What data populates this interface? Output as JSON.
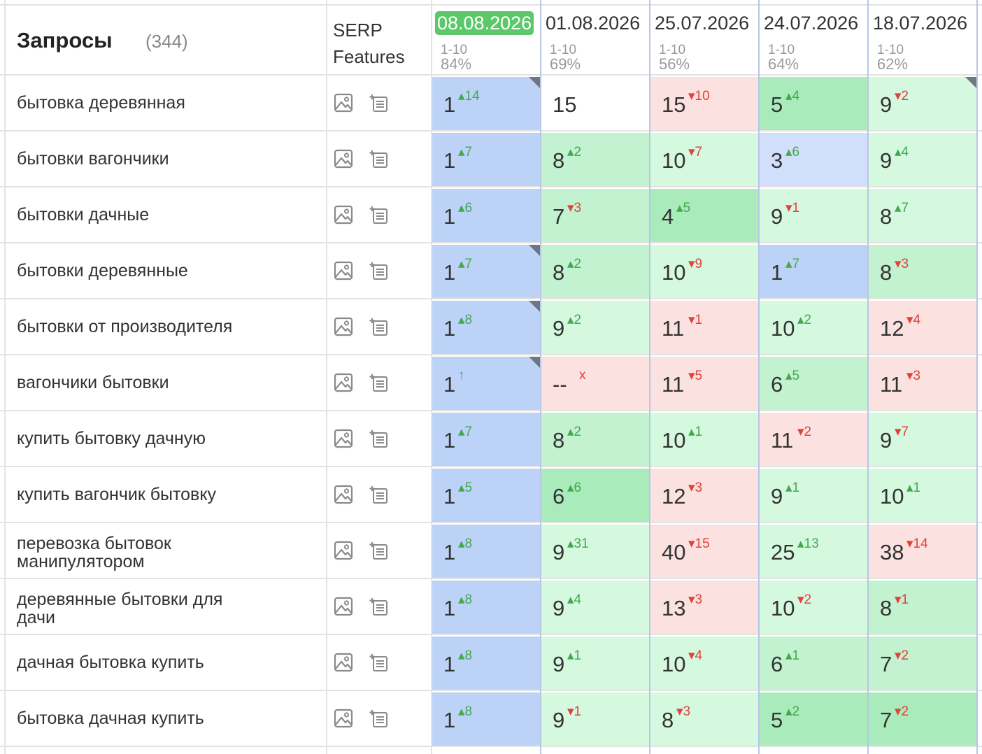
{
  "header": {
    "title": "Запросы",
    "count": "(344)",
    "serp_line1": "SERP",
    "serp_line2": "Features"
  },
  "dates": [
    {
      "label": "08.08.2026",
      "range": "1-10",
      "pct": "84%",
      "active": true
    },
    {
      "label": "01.08.2026",
      "range": "1-10",
      "pct": "69%",
      "active": false
    },
    {
      "label": "25.07.2026",
      "range": "1-10",
      "pct": "56%",
      "active": false
    },
    {
      "label": "24.07.2026",
      "range": "1-10",
      "pct": "64%",
      "active": false
    },
    {
      "label": "18.07.2026",
      "range": "1-10",
      "pct": "62%",
      "active": false
    }
  ],
  "icons": [
    "image-icon",
    "featured-snippet-icon"
  ],
  "colors": {
    "blue": "#bcd3f7",
    "light_blue": "#d2dffb",
    "dark_green": "#a9ebbb",
    "medium_green": "#c2f2cf",
    "light_green": "#d5f9df",
    "red": "#fbe1df",
    "up": "#43a94f",
    "down": "#e0423c",
    "active_date": "#5cc86a"
  },
  "rows": [
    {
      "keyword": "бытовка деревянная",
      "cells": [
        {
          "pos": "1",
          "chg": "14",
          "dir": "up",
          "color": "blue",
          "corner": true
        },
        {
          "pos": "15",
          "chg": "",
          "dir": "",
          "color": "white"
        },
        {
          "pos": "15",
          "chg": "10",
          "dir": "down",
          "color": "red"
        },
        {
          "pos": "5",
          "chg": "4",
          "dir": "up",
          "color": "dgreen"
        },
        {
          "pos": "9",
          "chg": "2",
          "dir": "down",
          "color": "lgreen",
          "corner": true
        }
      ]
    },
    {
      "keyword": "бытовки вагончики",
      "cells": [
        {
          "pos": "1",
          "chg": "7",
          "dir": "up",
          "color": "blue"
        },
        {
          "pos": "8",
          "chg": "2",
          "dir": "up",
          "color": "mgreen"
        },
        {
          "pos": "10",
          "chg": "7",
          "dir": "down",
          "color": "lgreen"
        },
        {
          "pos": "3",
          "chg": "6",
          "dir": "up",
          "color": "lblue"
        },
        {
          "pos": "9",
          "chg": "4",
          "dir": "up",
          "color": "lgreen"
        }
      ]
    },
    {
      "keyword": "бытовки дачные",
      "cells": [
        {
          "pos": "1",
          "chg": "6",
          "dir": "up",
          "color": "blue"
        },
        {
          "pos": "7",
          "chg": "3",
          "dir": "down",
          "color": "mgreen"
        },
        {
          "pos": "4",
          "chg": "5",
          "dir": "up",
          "color": "dgreen"
        },
        {
          "pos": "9",
          "chg": "1",
          "dir": "down",
          "color": "lgreen"
        },
        {
          "pos": "8",
          "chg": "7",
          "dir": "up",
          "color": "lgreen"
        }
      ]
    },
    {
      "keyword": "бытовки деревянные",
      "cells": [
        {
          "pos": "1",
          "chg": "7",
          "dir": "up",
          "color": "blue",
          "corner": true
        },
        {
          "pos": "8",
          "chg": "2",
          "dir": "up",
          "color": "mgreen"
        },
        {
          "pos": "10",
          "chg": "9",
          "dir": "down",
          "color": "lgreen"
        },
        {
          "pos": "1",
          "chg": "7",
          "dir": "up",
          "color": "blue"
        },
        {
          "pos": "8",
          "chg": "3",
          "dir": "down",
          "color": "mgreen"
        }
      ]
    },
    {
      "keyword": "бытовки от производителя",
      "cells": [
        {
          "pos": "1",
          "chg": "8",
          "dir": "up",
          "color": "blue",
          "corner": true
        },
        {
          "pos": "9",
          "chg": "2",
          "dir": "up",
          "color": "lgreen"
        },
        {
          "pos": "11",
          "chg": "1",
          "dir": "down",
          "color": "red"
        },
        {
          "pos": "10",
          "chg": "2",
          "dir": "up",
          "color": "lgreen"
        },
        {
          "pos": "12",
          "chg": "4",
          "dir": "down",
          "color": "red"
        }
      ]
    },
    {
      "keyword": "вагончики бытовки",
      "cells": [
        {
          "pos": "1",
          "chg": "↑",
          "dir": "up",
          "color": "blue",
          "corner": true
        },
        {
          "pos": "--",
          "chg": "x",
          "dir": "down",
          "color": "red"
        },
        {
          "pos": "11",
          "chg": "5",
          "dir": "down",
          "color": "red"
        },
        {
          "pos": "6",
          "chg": "5",
          "dir": "up",
          "color": "mgreen"
        },
        {
          "pos": "11",
          "chg": "3",
          "dir": "down",
          "color": "red"
        }
      ]
    },
    {
      "keyword": "купить бытовку дачную",
      "cells": [
        {
          "pos": "1",
          "chg": "7",
          "dir": "up",
          "color": "blue"
        },
        {
          "pos": "8",
          "chg": "2",
          "dir": "up",
          "color": "mgreen"
        },
        {
          "pos": "10",
          "chg": "1",
          "dir": "up",
          "color": "lgreen"
        },
        {
          "pos": "11",
          "chg": "2",
          "dir": "down",
          "color": "red"
        },
        {
          "pos": "9",
          "chg": "7",
          "dir": "down",
          "color": "lgreen"
        }
      ]
    },
    {
      "keyword": "купить вагончик бытовку",
      "cells": [
        {
          "pos": "1",
          "chg": "5",
          "dir": "up",
          "color": "blue"
        },
        {
          "pos": "6",
          "chg": "6",
          "dir": "up",
          "color": "dgreen"
        },
        {
          "pos": "12",
          "chg": "3",
          "dir": "down",
          "color": "red"
        },
        {
          "pos": "9",
          "chg": "1",
          "dir": "up",
          "color": "lgreen"
        },
        {
          "pos": "10",
          "chg": "1",
          "dir": "up",
          "color": "lgreen"
        }
      ]
    },
    {
      "keyword": "перевозка бытовок манипулятором",
      "cells": [
        {
          "pos": "1",
          "chg": "8",
          "dir": "up",
          "color": "blue"
        },
        {
          "pos": "9",
          "chg": "31",
          "dir": "up",
          "color": "lgreen"
        },
        {
          "pos": "40",
          "chg": "15",
          "dir": "down",
          "color": "red"
        },
        {
          "pos": "25",
          "chg": "13",
          "dir": "up",
          "color": "lgreen"
        },
        {
          "pos": "38",
          "chg": "14",
          "dir": "down",
          "color": "red"
        }
      ]
    },
    {
      "keyword": "деревянные бытовки для дачи",
      "cells": [
        {
          "pos": "1",
          "chg": "8",
          "dir": "up",
          "color": "blue"
        },
        {
          "pos": "9",
          "chg": "4",
          "dir": "up",
          "color": "lgreen"
        },
        {
          "pos": "13",
          "chg": "3",
          "dir": "down",
          "color": "red"
        },
        {
          "pos": "10",
          "chg": "2",
          "dir": "down",
          "color": "lgreen"
        },
        {
          "pos": "8",
          "chg": "1",
          "dir": "down",
          "color": "mgreen"
        }
      ]
    },
    {
      "keyword": "дачная бытовка купить",
      "cells": [
        {
          "pos": "1",
          "chg": "8",
          "dir": "up",
          "color": "blue"
        },
        {
          "pos": "9",
          "chg": "1",
          "dir": "up",
          "color": "lgreen"
        },
        {
          "pos": "10",
          "chg": "4",
          "dir": "down",
          "color": "lgreen"
        },
        {
          "pos": "6",
          "chg": "1",
          "dir": "up",
          "color": "mgreen"
        },
        {
          "pos": "7",
          "chg": "2",
          "dir": "down",
          "color": "mgreen"
        }
      ]
    },
    {
      "keyword": "бытовка дачная купить",
      "cells": [
        {
          "pos": "1",
          "chg": "8",
          "dir": "up",
          "color": "blue"
        },
        {
          "pos": "9",
          "chg": "1",
          "dir": "down",
          "color": "lgreen"
        },
        {
          "pos": "8",
          "chg": "3",
          "dir": "down",
          "color": "lgreen"
        },
        {
          "pos": "5",
          "chg": "2",
          "dir": "up",
          "color": "dgreen"
        },
        {
          "pos": "7",
          "chg": "2",
          "dir": "down",
          "color": "dgreen"
        }
      ]
    }
  ]
}
